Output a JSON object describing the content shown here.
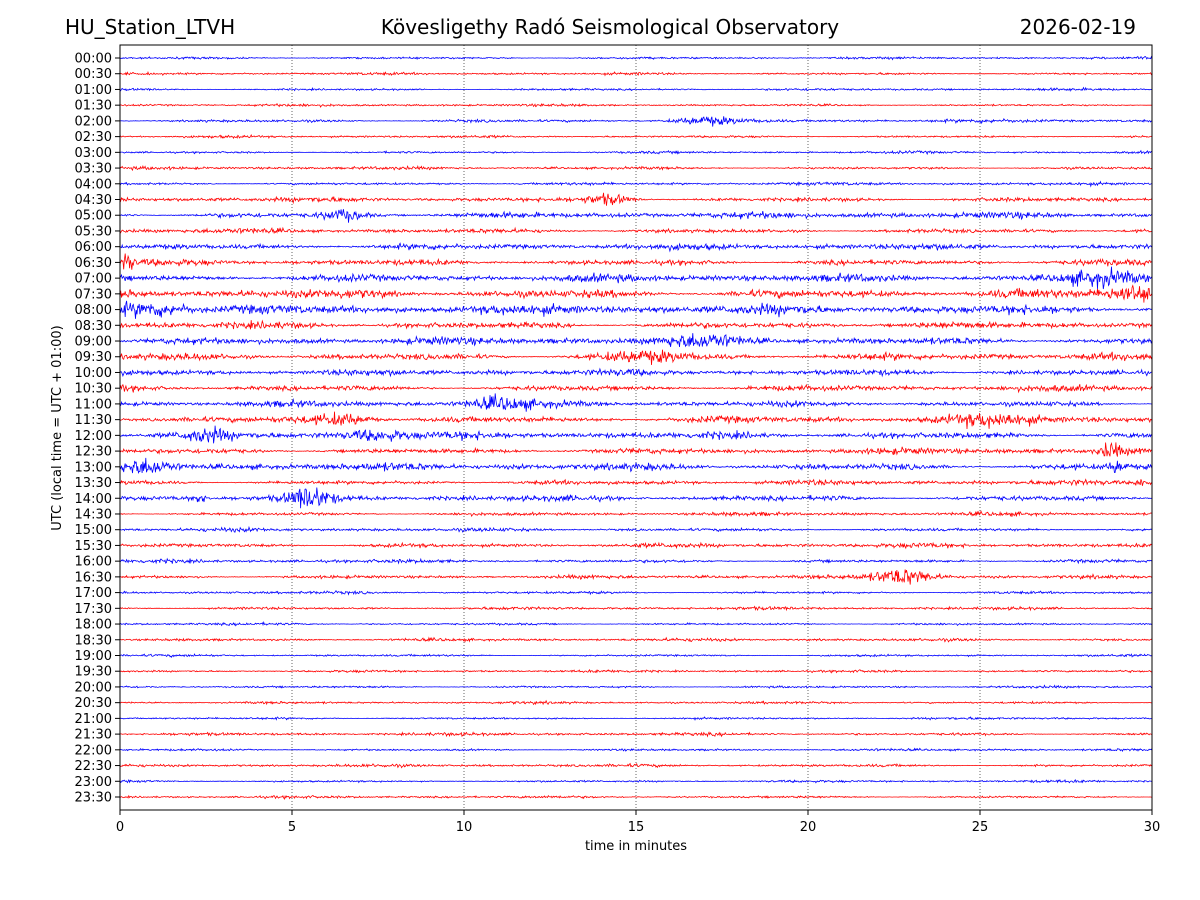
{
  "header": {
    "station": "HU_Station_LTVH",
    "observatory": "Kövesligethy Radó Seismological Observatory",
    "date": "2026-02-19"
  },
  "chart_data": {
    "type": "line",
    "title": "Kövesligethy Radó Seismological Observatory",
    "xlabel": "time in minutes",
    "ylabel": "UTC (local time = UTC + 01:00)",
    "xlim": [
      0,
      30
    ],
    "xticks": [
      "0",
      "5",
      "10",
      "15",
      "20",
      "25",
      "30"
    ],
    "grid": "vertical dotted lines every 5 minutes",
    "colors": [
      "#0000ff",
      "#ff0000"
    ],
    "rows": [
      "00:00",
      "00:30",
      "01:00",
      "01:30",
      "02:00",
      "02:30",
      "03:00",
      "03:30",
      "04:00",
      "04:30",
      "05:00",
      "05:30",
      "06:00",
      "06:30",
      "07:00",
      "07:30",
      "08:00",
      "08:30",
      "09:00",
      "09:30",
      "10:00",
      "10:30",
      "11:00",
      "11:30",
      "12:00",
      "12:30",
      "13:00",
      "13:30",
      "14:00",
      "14:30",
      "15:00",
      "15:30",
      "16:00",
      "16:30",
      "17:00",
      "17:30",
      "18:00",
      "18:30",
      "19:00",
      "19:30",
      "20:00",
      "20:30",
      "21:00",
      "21:30",
      "22:00",
      "22:30",
      "23:00",
      "23:30"
    ],
    "noise_level": [
      1,
      1,
      1,
      1,
      1.4,
      1,
      1,
      1.2,
      1.2,
      2,
      2.5,
      2,
      2.5,
      2.5,
      3,
      4,
      4,
      3,
      3,
      3,
      2.5,
      2.5,
      2.5,
      3,
      3,
      2.5,
      3,
      2,
      2.5,
      1.5,
      1.5,
      1.8,
      1.5,
      1.5,
      1.2,
      1.2,
      1,
      1.2,
      1,
      1,
      1,
      1,
      1,
      1.2,
      1,
      1.2,
      1,
      1
    ],
    "events": [
      {
        "row": "02:00",
        "minute": 17,
        "amplitude": 3,
        "duration": 1.5
      },
      {
        "row": "04:30",
        "minute": 14.2,
        "amplitude": 4,
        "duration": 1
      },
      {
        "row": "05:00",
        "minute": 6.5,
        "amplitude": 4,
        "duration": 1
      },
      {
        "row": "06:30",
        "minute": 0.2,
        "amplitude": 8,
        "duration": 0.3
      },
      {
        "row": "07:00",
        "minute": 28.5,
        "amplitude": 5,
        "duration": 2
      },
      {
        "row": "07:30",
        "minute": 29.5,
        "amplitude": 6,
        "duration": 1.5
      },
      {
        "row": "08:00",
        "minute": 1,
        "amplitude": 6,
        "duration": 2
      },
      {
        "row": "09:00",
        "minute": 17,
        "amplitude": 4,
        "duration": 2
      },
      {
        "row": "09:30",
        "minute": 15.3,
        "amplitude": 4,
        "duration": 2
      },
      {
        "row": "11:00",
        "minute": 11,
        "amplitude": 5,
        "duration": 1.5
      },
      {
        "row": "11:30",
        "minute": 6.5,
        "amplitude": 5,
        "duration": 1.5
      },
      {
        "row": "11:30",
        "minute": 25.5,
        "amplitude": 4,
        "duration": 2
      },
      {
        "row": "12:00",
        "minute": 2.5,
        "amplitude": 4,
        "duration": 1
      },
      {
        "row": "12:00",
        "minute": 7.5,
        "amplitude": 4,
        "duration": 1.5
      },
      {
        "row": "12:30",
        "minute": 28.8,
        "amplitude": 6,
        "duration": 0.5
      },
      {
        "row": "13:00",
        "minute": 0.8,
        "amplitude": 5,
        "duration": 1
      },
      {
        "row": "13:00",
        "minute": 29,
        "amplitude": 5,
        "duration": 0.4
      },
      {
        "row": "13:30",
        "minute": 29.7,
        "amplitude": 5,
        "duration": 0.3
      },
      {
        "row": "14:00",
        "minute": 2.3,
        "amplitude": 6,
        "duration": 0.2
      },
      {
        "row": "14:00",
        "minute": 5.5,
        "amplitude": 8,
        "duration": 1
      },
      {
        "row": "16:30",
        "minute": 22.8,
        "amplitude": 7,
        "duration": 1.5
      }
    ]
  }
}
